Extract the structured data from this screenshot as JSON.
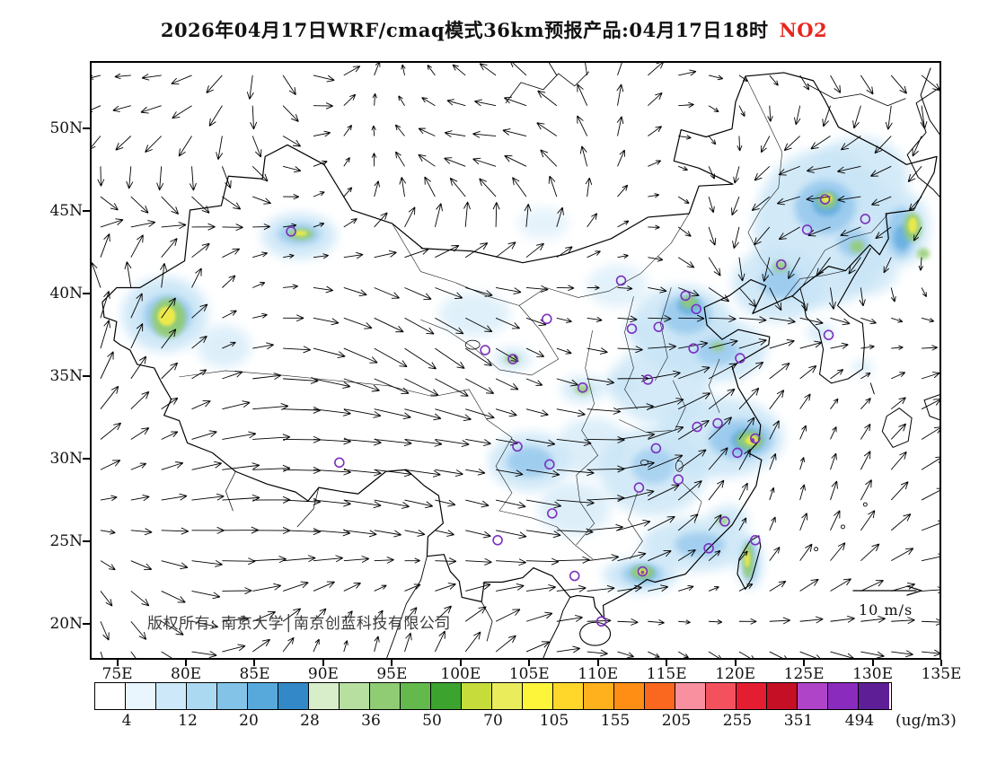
{
  "title": {
    "prefix": "2026年04月17日WRF/cmaq模式36km预报产品:04月17日18时",
    "species": "NO2"
  },
  "plot": {
    "copyright": "版权所有: 南京大学│南京创蓝科技有限公司",
    "wind_legend_label": "10 m/s"
  },
  "axes": {
    "lat_labels": [
      "50N",
      "45N",
      "40N",
      "35N",
      "30N",
      "25N",
      "20N"
    ],
    "lon_labels": [
      "75E",
      "80E",
      "85E",
      "90E",
      "95E",
      "100E",
      "105E",
      "110E",
      "115E",
      "120E",
      "125E",
      "130E",
      "135E"
    ]
  },
  "colorbar": {
    "tick_labels": [
      "4",
      "12",
      "20",
      "28",
      "36",
      "50",
      "70",
      "105",
      "155",
      "205",
      "255",
      "351",
      "494"
    ],
    "unit_label": "(ug/m3)",
    "colors": [
      "#FFFFFF",
      "#E9F6FD",
      "#CDE9F9",
      "#ABD9F2",
      "#83C3E8",
      "#57A9DC",
      "#3389C8",
      "#D8EDCA",
      "#B6DFA0",
      "#8FCC74",
      "#63B94C",
      "#3CA32F",
      "#C6DC3A",
      "#EBEC5C",
      "#FDF53A",
      "#FFD72A",
      "#FFB01D",
      "#FF8E15",
      "#FA671E",
      "#F8909F",
      "#F4515F",
      "#E51D31",
      "#C40F25",
      "#B044C8",
      "#8A2BBE",
      "#5E1F96"
    ]
  },
  "colors": {
    "species_accent": "#E8251E",
    "text": "#111111",
    "copyright_text": "#3A3A3A"
  },
  "chart_data": {
    "type": "heatmap",
    "title": "2026年04月17日WRF/cmaq模式36km预报产品:04月17日18时 NO2",
    "x_ticks": [
      "75E",
      "80E",
      "85E",
      "90E",
      "95E",
      "100E",
      "105E",
      "110E",
      "115E",
      "120E",
      "125E",
      "130E",
      "135E"
    ],
    "y_ticks": [
      "50N",
      "45N",
      "40N",
      "35N",
      "30N",
      "25N",
      "20N"
    ],
    "colorbar_ticks": [
      4,
      12,
      20,
      28,
      36,
      50,
      70,
      105,
      155,
      205,
      255,
      351,
      494
    ],
    "unit": "ug/m3",
    "wind_reference": "10 m/s",
    "legend_position": "bottom"
  }
}
